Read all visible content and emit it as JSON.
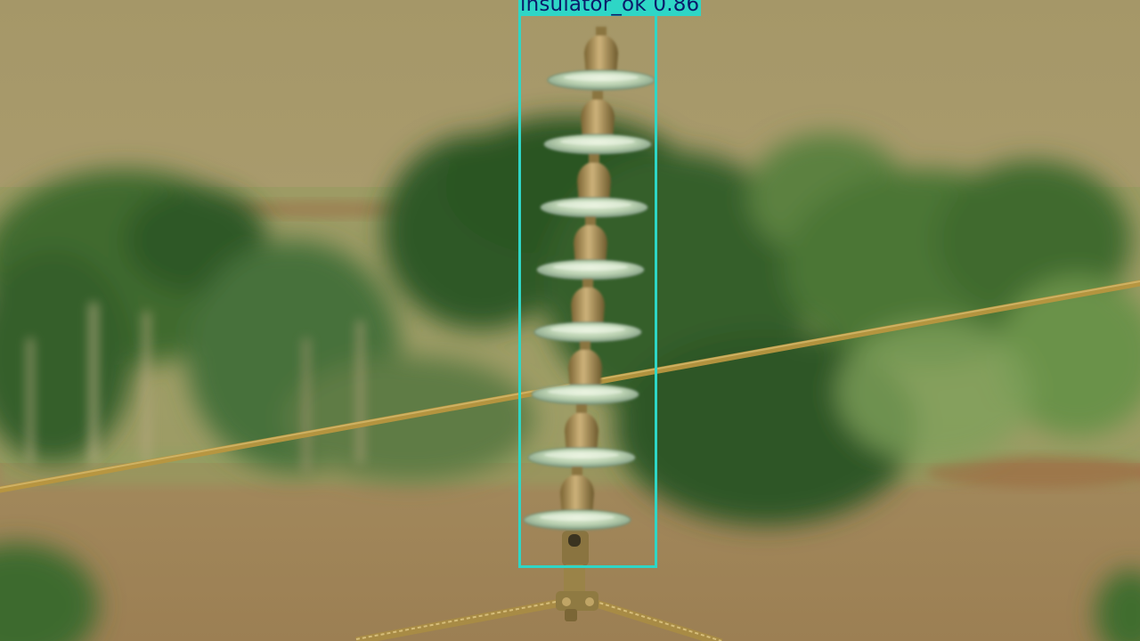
{
  "detections": [
    {
      "label": "insulator_ok",
      "score": "0.86",
      "box_color": "#2ed6c6",
      "label_text_color": "#0b1a6a"
    }
  ],
  "scene": {
    "background": "blurred farmland with trees",
    "object": "suspension glass insulator string on power line"
  }
}
